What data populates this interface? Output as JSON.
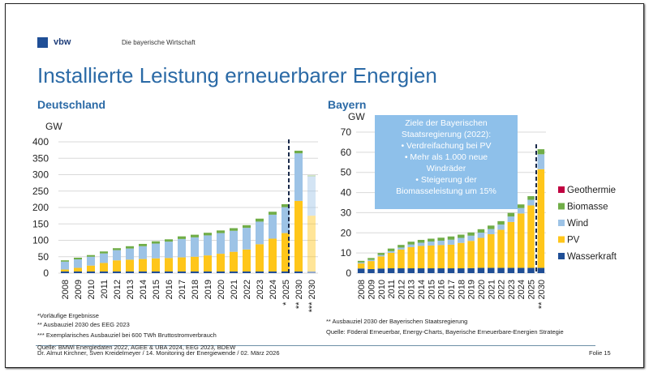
{
  "header": {
    "brand": "vbw",
    "tagline": "Die bayerische Wirtschaft",
    "title": "Installierte Leistung erneuerbarer Energien"
  },
  "colors": {
    "Wasserkraft": "#1f4e96",
    "PV": "#ffc61a",
    "Wind": "#9dc3e6",
    "Biomasse": "#70ad47",
    "Geothermie": "#c00040",
    "accent": "#2b6aa6"
  },
  "chart_data": [
    {
      "type": "bar",
      "stacked": true,
      "title": "Deutschland",
      "ylabel": "GW",
      "ylim": [
        0,
        400
      ],
      "yticks": [
        0,
        50,
        100,
        150,
        200,
        250,
        300,
        350,
        400
      ],
      "grid": true,
      "categories": [
        "2008",
        "2009",
        "2010",
        "2011",
        "2012",
        "2013",
        "2014",
        "2015",
        "2016",
        "2017",
        "2018",
        "2019",
        "2020",
        "2021",
        "2022",
        "2023",
        "2024",
        "* 2025",
        "** 2030",
        "*** 2030"
      ],
      "series": [
        {
          "name": "Wasserkraft",
          "values": [
            5,
            5,
            5,
            5,
            5,
            5,
            5,
            5,
            5,
            5,
            5,
            5,
            5,
            5,
            5,
            5,
            5,
            5,
            5,
            5
          ]
        },
        {
          "name": "PV",
          "values": [
            6,
            11,
            18,
            26,
            34,
            36,
            38,
            40,
            41,
            43,
            45,
            49,
            54,
            60,
            67,
            83,
            100,
            117,
            215,
            170
          ]
        },
        {
          "name": "Wind",
          "values": [
            24,
            26,
            27,
            29,
            31,
            34,
            39,
            45,
            50,
            56,
            59,
            61,
            63,
            64,
            66,
            69,
            73,
            79,
            145,
            120
          ]
        },
        {
          "name": "Biomasse",
          "values": [
            4,
            5,
            5,
            6,
            6,
            7,
            7,
            7,
            7,
            8,
            8,
            8,
            8,
            8,
            8,
            9,
            9,
            9,
            8,
            3
          ]
        }
      ],
      "faded_categories": [
        "*** 2030"
      ]
    },
    {
      "type": "bar",
      "stacked": true,
      "title": "Bayern",
      "ylabel": "GW",
      "ylim": [
        0,
        70
      ],
      "yticks": [
        0,
        10,
        20,
        30,
        40,
        50,
        60,
        70
      ],
      "grid": true,
      "legend": "right",
      "categories": [
        "2008",
        "2009",
        "2010",
        "2011",
        "2012",
        "2013",
        "2014",
        "2015",
        "2016",
        "2017",
        "2018",
        "2019",
        "2020",
        "2021",
        "2022",
        "2023",
        "2024",
        "2025",
        "** 2030"
      ],
      "series": [
        {
          "name": "Wasserkraft",
          "values": [
            2.3,
            2.0,
            2.3,
            2.4,
            2.4,
            2.4,
            2.4,
            2.4,
            2.4,
            2.4,
            2.4,
            2.5,
            2.6,
            2.6,
            2.6,
            2.6,
            2.6,
            2.6,
            2.6
          ]
        },
        {
          "name": "PV",
          "values": [
            2.5,
            4,
            6,
            7.7,
            9.3,
            10.5,
            11.1,
            11.3,
            11.5,
            11.7,
            12.6,
            13.5,
            14.9,
            16.7,
            18.9,
            22.8,
            27,
            31,
            49
          ]
        },
        {
          "name": "Wind",
          "values": [
            0.5,
            0.6,
            0.7,
            0.8,
            1.0,
            1.3,
            1.6,
            2.0,
            2.2,
            2.5,
            2.5,
            2.6,
            2.6,
            2.6,
            2.6,
            2.7,
            2.7,
            2.8,
            7.4
          ]
        },
        {
          "name": "Biomasse",
          "values": [
            0.8,
            0.9,
            1.0,
            1.3,
            1.3,
            1.4,
            1.4,
            1.4,
            1.5,
            1.6,
            1.6,
            1.6,
            1.7,
            1.7,
            1.7,
            1.8,
            1.8,
            1.8,
            2.5
          ]
        },
        {
          "name": "Geothermie",
          "values": [
            0,
            0,
            0,
            0,
            0,
            0,
            0,
            0,
            0,
            0,
            0,
            0,
            0,
            0,
            0,
            0,
            0,
            0,
            0
          ]
        }
      ],
      "legend_order": [
        "Geothermie",
        "Biomasse",
        "Wind",
        "PV",
        "Wasserkraft"
      ]
    }
  ],
  "annotation": {
    "lines": [
      "Ziele der Bayerischen",
      "Staatsregierung (2022):",
      "•    Verdreifachung bei PV",
      "•    Mehr als 1.000 neue",
      "Windräder",
      "•    Steigerung der",
      "Biomasseleistung um 15%"
    ]
  },
  "notes": {
    "de": [
      "*Vorläufige Ergebnisse",
      "** Ausbauziel 2030 des EEG 2023",
      "*** Exemplarisches Ausbauziel bei 600 TWh Bruttostromverbrauch"
    ],
    "by": [
      "** Ausbauziel 2030 der Bayerischen Staatsregierung",
      "Quelle: Föderal Erneuerbar, Energy-Charts, Bayerische Erneuerbare-Energien Strategie"
    ]
  },
  "footer": {
    "source": "Quelle: BMWi Energiedaten 2022, AGEE & UBA 2024, EEG 2023, BDEW",
    "authors": "Dr. Almut Kirchner, Sven Kreidelmeyer /  14. Monitoring der Energiewende  /  02. März 2026",
    "slide": "Folie 15"
  }
}
